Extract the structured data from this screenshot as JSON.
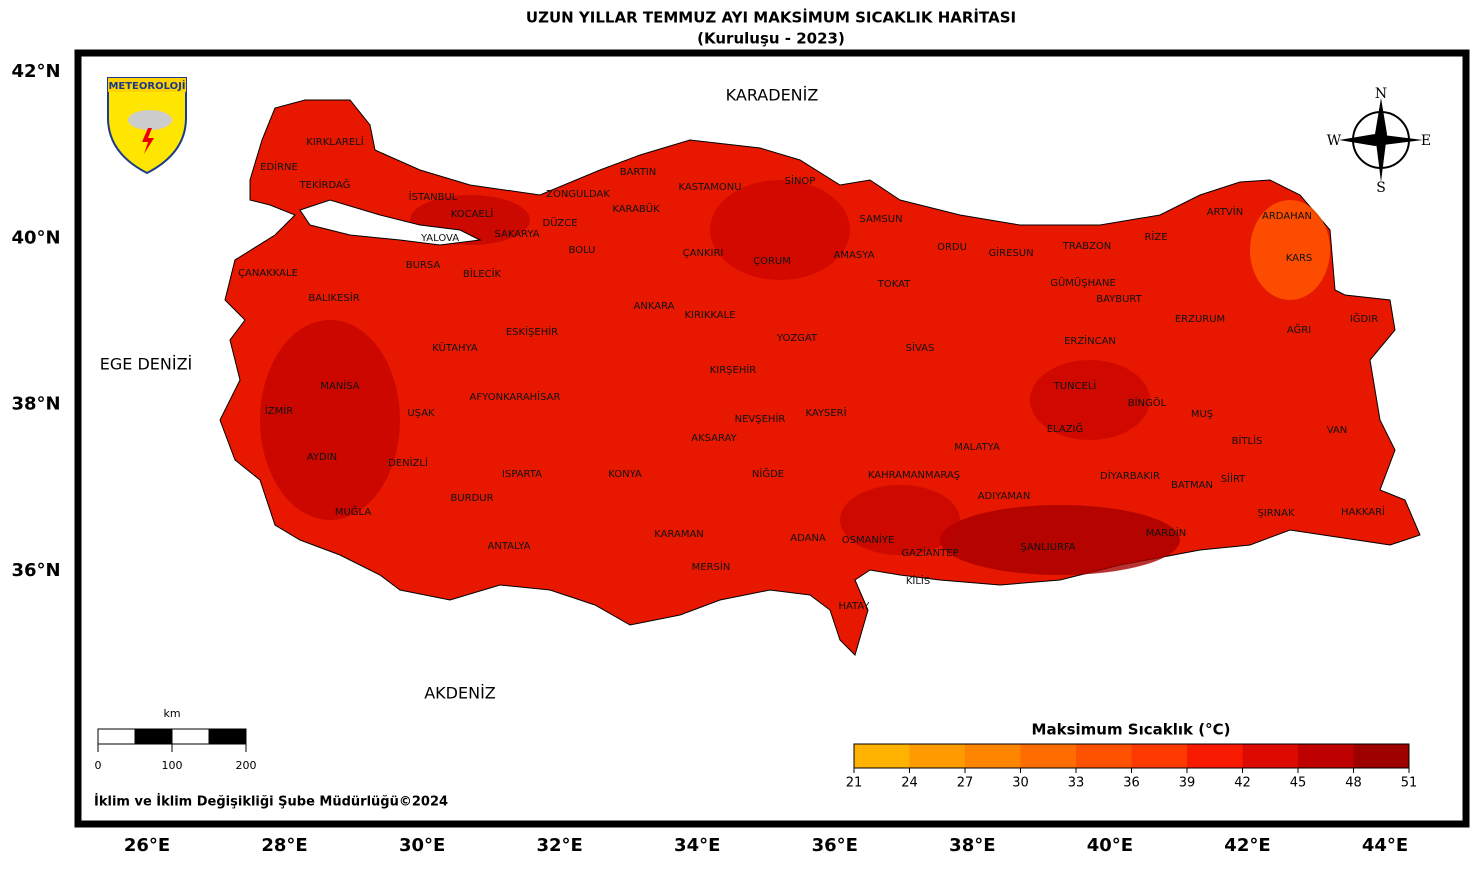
{
  "header": {
    "title": "UZUN YILLAR TEMMUZ AYI MAKSİMUM SICAKLIK HARİTASI",
    "subtitle": "(Kuruluşu - 2023)"
  },
  "logo": "METEOROLOJİ",
  "compass": {
    "n": "N",
    "e": "E",
    "s": "S",
    "w": "W"
  },
  "lat_ticks": [
    {
      "value": 42,
      "label": "42°N"
    },
    {
      "value": 40,
      "label": "40°N"
    },
    {
      "value": 38,
      "label": "38°N"
    },
    {
      "value": 36,
      "label": "36°N"
    }
  ],
  "lon_ticks": [
    {
      "value": 26,
      "label": "26°E"
    },
    {
      "value": 28,
      "label": "28°E"
    },
    {
      "value": 30,
      "label": "30°E"
    },
    {
      "value": 32,
      "label": "32°E"
    },
    {
      "value": 34,
      "label": "34°E"
    },
    {
      "value": 36,
      "label": "36°E"
    },
    {
      "value": 38,
      "label": "38°E"
    },
    {
      "value": 40,
      "label": "40°E"
    },
    {
      "value": 42,
      "label": "42°E"
    },
    {
      "value": 44,
      "label": "44°E"
    }
  ],
  "seas": [
    "KARADENİZ",
    "EGE DENİZİ",
    "AKDENİZ"
  ],
  "provinces": [
    "KIRKLARELİ",
    "EDİRNE",
    "TEKİRDAĞ",
    "İSTANBUL",
    "KOCAELİ",
    "YALOVA",
    "SAKARYA",
    "DÜZCE",
    "ZONGULDAK",
    "BARTIN",
    "KARABÜK",
    "KASTAMONU",
    "SİNOP",
    "SAMSUN",
    "BOLU",
    "ÇANKIRI",
    "ÇORUM",
    "AMASYA",
    "TOKAT",
    "ORDU",
    "GİRESUN",
    "TRABZON",
    "RİZE",
    "ARTVİN",
    "ARDAHAN",
    "KARS",
    "GÜMÜŞHANE",
    "BAYBURT",
    "ERZURUM",
    "AĞRI",
    "IĞDIR",
    "ERZİNCAN",
    "TUNCELİ",
    "BİNGÖL",
    "MUŞ",
    "BİTLİS",
    "VAN",
    "ELAZIĞ",
    "MALATYA",
    "SİVAS",
    "YOZGAT",
    "KIRIKKALE",
    "ANKARA",
    "KIRŞEHİR",
    "NEVŞEHİR",
    "KAYSERİ",
    "AKSARAY",
    "NİĞDE",
    "KONYA",
    "KARAMAN",
    "MERSİN",
    "ADANA",
    "OSMANİYE",
    "HATAY",
    "KİLİS",
    "GAZİANTEP",
    "KAHRAMANMARAŞ",
    "ADIYAMAN",
    "ŞANLIURFA",
    "DİYARBAKIR",
    "BATMAN",
    "SİİRT",
    "MARDİN",
    "ŞIRNAK",
    "HAKKARİ",
    "BURSA",
    "BİLECİK",
    "ÇANAKKALE",
    "BALIKESİR",
    "ESKİŞEHİR",
    "KÜTAHYA",
    "MANİSA",
    "İZMİR",
    "UŞAK",
    "AFYONKARAHİSAR",
    "AYDIN",
    "DENİZLİ",
    "ISPARTA",
    "BURDUR",
    "MUĞLA",
    "ANTALYA"
  ],
  "scalebar": {
    "unit": "km",
    "ticks": [
      0,
      100,
      200
    ]
  },
  "colorbar": {
    "title": "Maksimum Sıcaklık (°C)",
    "ticks": [
      21,
      24,
      27,
      30,
      33,
      36,
      39,
      42,
      45,
      48,
      51
    ],
    "colors": [
      "#ffb300",
      "#ff9a00",
      "#ff8400",
      "#ff6c00",
      "#ff5200",
      "#ff3a00",
      "#f71a00",
      "#dc0a00",
      "#bf0000",
      "#9e0000",
      "#7f0000"
    ]
  },
  "footer": "İklim ve İklim Değişikliği Şube Müdürlüğü©2024"
}
